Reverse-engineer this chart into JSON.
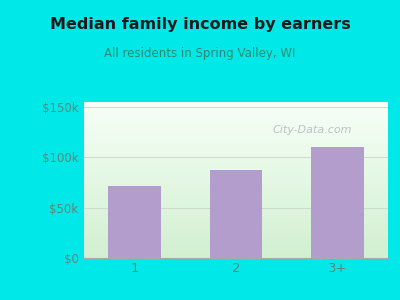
{
  "title": "Median family income by earners",
  "subtitle": "All residents in Spring Valley, WI",
  "categories": [
    "1",
    "2",
    "3+"
  ],
  "values": [
    72000,
    87000,
    110000
  ],
  "bar_color": "#b39dcc",
  "outer_bg": "#00e8e8",
  "plot_bg_top": "#f0f8f0",
  "plot_bg_bottom": "#d8f0d8",
  "yticks": [
    0,
    50000,
    100000,
    150000
  ],
  "ytick_labels": [
    "$0",
    "$50k",
    "$100k",
    "$150k"
  ],
  "ylim": [
    0,
    155000
  ],
  "title_color": "#1a1a1a",
  "subtitle_color": "#2e8b6e",
  "tick_color": "#5a8a7a",
  "watermark": "City-Data.com",
  "watermark_color": "#b0b8c0",
  "grid_color": "#d0d8d0"
}
